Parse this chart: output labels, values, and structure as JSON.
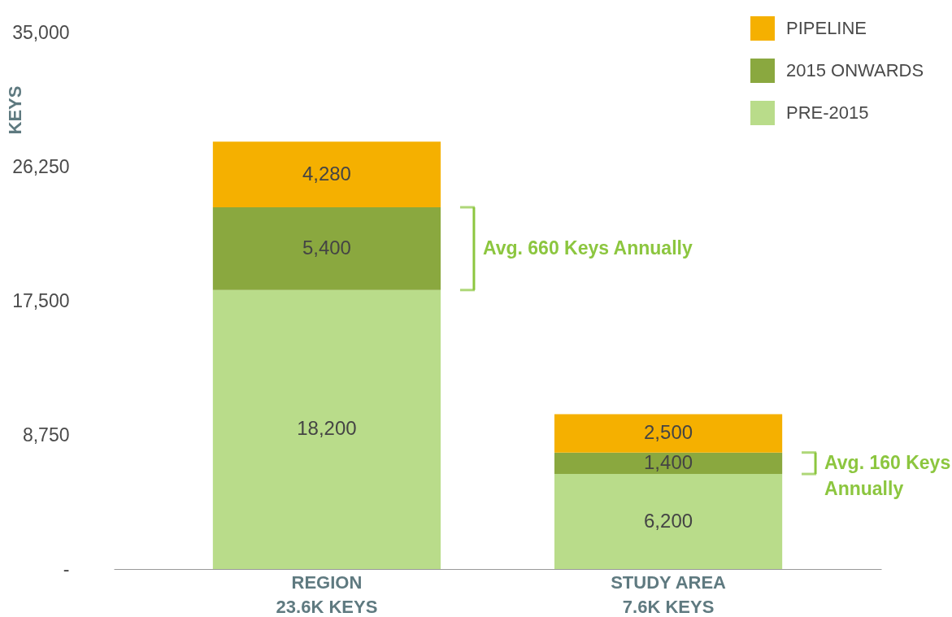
{
  "chart_data": {
    "type": "bar",
    "stacked": true,
    "ylabel": "KEYS",
    "categories": [
      "REGION\n23.6K  KEYS",
      "STUDY AREA\n7.6K KEYS"
    ],
    "series": [
      {
        "name": "PRE-2015",
        "color": "#b9dc8a",
        "values": [
          18200,
          6200
        ],
        "value_labels": [
          "18,200",
          "6,200"
        ]
      },
      {
        "name": "2015 ONWARDS",
        "color": "#8aa83f",
        "values": [
          5400,
          1400
        ],
        "value_labels": [
          "5,400",
          "1,400"
        ]
      },
      {
        "name": "PIPELINE",
        "color": "#f5b000",
        "values": [
          4280,
          2500
        ],
        "value_labels": [
          "4,280",
          "2,500"
        ]
      }
    ],
    "ylim": [
      0,
      35000
    ],
    "yticks": [
      {
        "value": 0,
        "label": "-"
      },
      {
        "value": 8750,
        "label": "8,750"
      },
      {
        "value": 17500,
        "label": "17,500"
      },
      {
        "value": 26250,
        "label": "26,250"
      },
      {
        "value": 35000,
        "label": "35,000"
      }
    ],
    "grid": false,
    "legend": "top right",
    "annotations": [
      "Avg. 660 Keys Annually",
      "Avg. 160 Keys\nAnnually"
    ]
  }
}
